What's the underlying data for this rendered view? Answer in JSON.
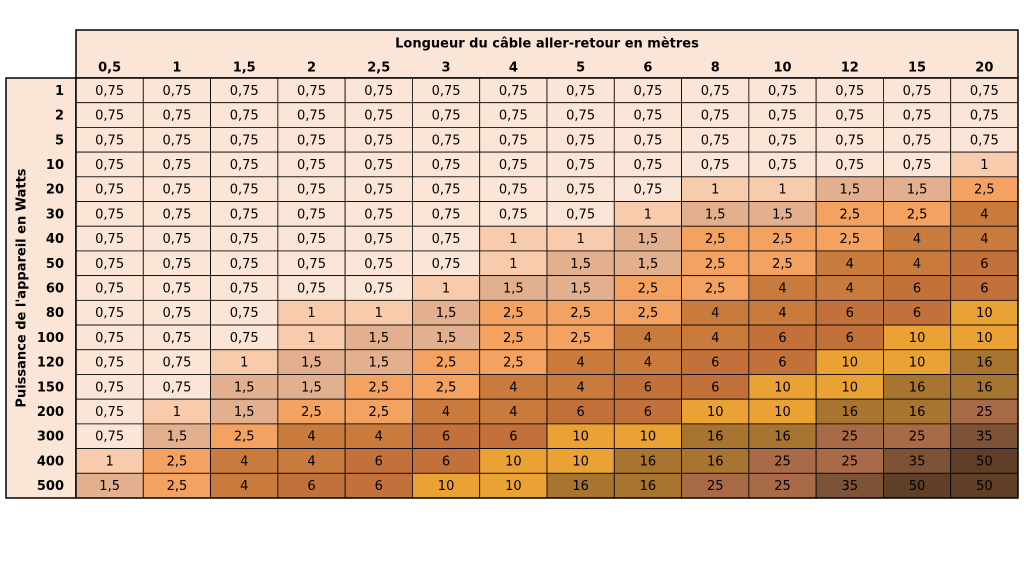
{
  "table": {
    "column_title": "Longueur du câble aller-retour en mètres",
    "row_title": "Puissance de l'appareil en Watts",
    "columns": [
      "0,5",
      "1",
      "1,5",
      "2",
      "2,5",
      "3",
      "4",
      "5",
      "6",
      "8",
      "10",
      "12",
      "15",
      "20"
    ],
    "rows": [
      {
        "label": "1",
        "cells": [
          "0,75",
          "0,75",
          "0,75",
          "0,75",
          "0,75",
          "0,75",
          "0,75",
          "0,75",
          "0,75",
          "0,75",
          "0,75",
          "0,75",
          "0,75",
          "0,75"
        ]
      },
      {
        "label": "2",
        "cells": [
          "0,75",
          "0,75",
          "0,75",
          "0,75",
          "0,75",
          "0,75",
          "0,75",
          "0,75",
          "0,75",
          "0,75",
          "0,75",
          "0,75",
          "0,75",
          "0,75"
        ]
      },
      {
        "label": "5",
        "cells": [
          "0,75",
          "0,75",
          "0,75",
          "0,75",
          "0,75",
          "0,75",
          "0,75",
          "0,75",
          "0,75",
          "0,75",
          "0,75",
          "0,75",
          "0,75",
          "0,75"
        ]
      },
      {
        "label": "10",
        "cells": [
          "0,75",
          "0,75",
          "0,75",
          "0,75",
          "0,75",
          "0,75",
          "0,75",
          "0,75",
          "0,75",
          "0,75",
          "0,75",
          "0,75",
          "0,75",
          "1"
        ]
      },
      {
        "label": "20",
        "cells": [
          "0,75",
          "0,75",
          "0,75",
          "0,75",
          "0,75",
          "0,75",
          "0,75",
          "0,75",
          "0,75",
          "1",
          "1",
          "1,5",
          "1,5",
          "2,5"
        ]
      },
      {
        "label": "30",
        "cells": [
          "0,75",
          "0,75",
          "0,75",
          "0,75",
          "0,75",
          "0,75",
          "0,75",
          "0,75",
          "1",
          "1,5",
          "1,5",
          "2,5",
          "2,5",
          "4"
        ]
      },
      {
        "label": "40",
        "cells": [
          "0,75",
          "0,75",
          "0,75",
          "0,75",
          "0,75",
          "0,75",
          "1",
          "1",
          "1,5",
          "2,5",
          "2,5",
          "2,5",
          "4",
          "4"
        ]
      },
      {
        "label": "50",
        "cells": [
          "0,75",
          "0,75",
          "0,75",
          "0,75",
          "0,75",
          "0,75",
          "1",
          "1,5",
          "1,5",
          "2,5",
          "2,5",
          "4",
          "4",
          "6"
        ]
      },
      {
        "label": "60",
        "cells": [
          "0,75",
          "0,75",
          "0,75",
          "0,75",
          "0,75",
          "1",
          "1,5",
          "1,5",
          "2,5",
          "2,5",
          "4",
          "4",
          "6",
          "6"
        ]
      },
      {
        "label": "80",
        "cells": [
          "0,75",
          "0,75",
          "0,75",
          "1",
          "1",
          "1,5",
          "2,5",
          "2,5",
          "2,5",
          "4",
          "4",
          "6",
          "6",
          "10"
        ]
      },
      {
        "label": "100",
        "cells": [
          "0,75",
          "0,75",
          "0,75",
          "1",
          "1,5",
          "1,5",
          "2,5",
          "2,5",
          "4",
          "4",
          "6",
          "6",
          "10",
          "10"
        ]
      },
      {
        "label": "120",
        "cells": [
          "0,75",
          "0,75",
          "1",
          "1,5",
          "1,5",
          "2,5",
          "2,5",
          "4",
          "4",
          "6",
          "6",
          "10",
          "10",
          "16"
        ]
      },
      {
        "label": "150",
        "cells": [
          "0,75",
          "0,75",
          "1,5",
          "1,5",
          "2,5",
          "2,5",
          "4",
          "4",
          "6",
          "6",
          "10",
          "10",
          "16",
          "16"
        ]
      },
      {
        "label": "200",
        "cells": [
          "0,75",
          "1",
          "1,5",
          "2,5",
          "2,5",
          "4",
          "4",
          "6",
          "6",
          "10",
          "10",
          "16",
          "16",
          "25"
        ]
      },
      {
        "label": "300",
        "cells": [
          "0,75",
          "1,5",
          "2,5",
          "4",
          "4",
          "6",
          "6",
          "10",
          "10",
          "16",
          "16",
          "25",
          "25",
          "35"
        ]
      },
      {
        "label": "400",
        "cells": [
          "1",
          "2,5",
          "4",
          "4",
          "6",
          "6",
          "10",
          "10",
          "16",
          "16",
          "25",
          "25",
          "35",
          "50"
        ]
      },
      {
        "label": "500",
        "cells": [
          "1,5",
          "2,5",
          "4",
          "6",
          "6",
          "10",
          "10",
          "16",
          "16",
          "25",
          "25",
          "35",
          "50",
          "50"
        ]
      }
    ],
    "colors": {
      "0,75": "#fbe5d6",
      "1": "#f8cbad",
      "1,5": "#e3b08f",
      "2,5": "#f4a261",
      "4": "#c97b3e",
      "6": "#c2713a",
      "10": "#eaa234",
      "16": "#a87530",
      "25": "#a96a48",
      "35": "#7d5338",
      "50": "#5f3f27"
    },
    "header_color": "#fbe5d6"
  }
}
